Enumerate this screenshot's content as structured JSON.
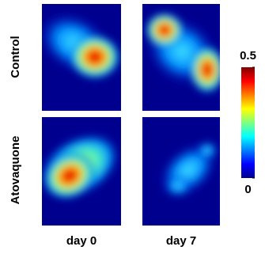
{
  "chart_data": {
    "type": "heatmap",
    "row_labels": [
      "Control",
      "Atovaquone"
    ],
    "column_labels": [
      "day 0",
      "day 7"
    ],
    "colorbar_lim": [
      0,
      0.5
    ],
    "colorbar_ticks": [
      0,
      0.5
    ]
  }
}
